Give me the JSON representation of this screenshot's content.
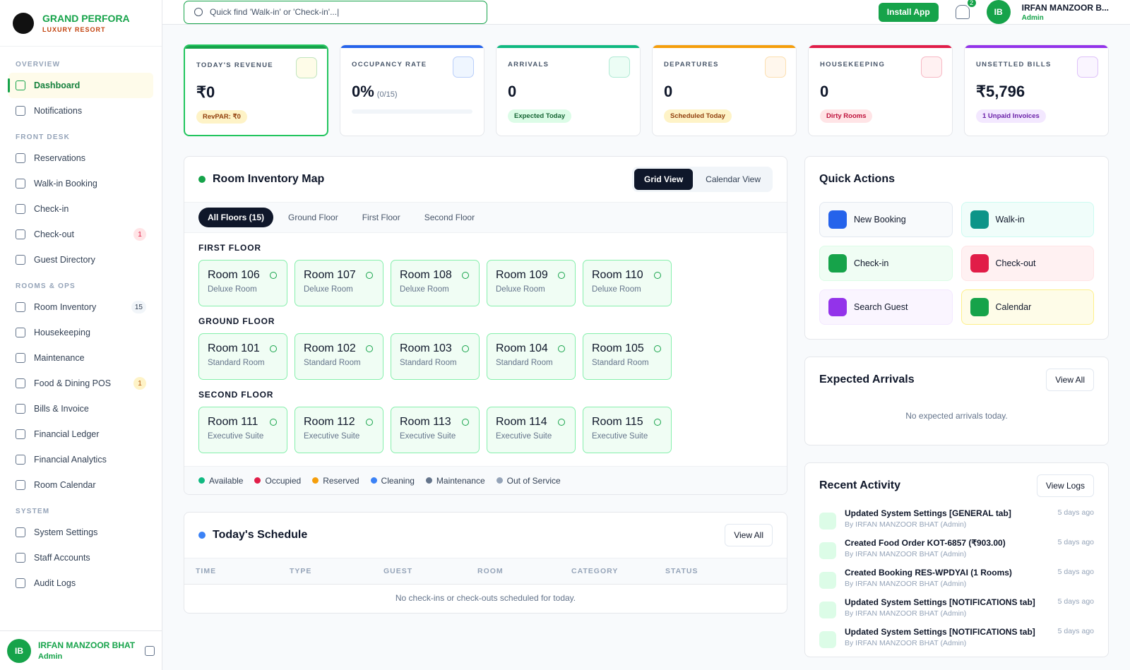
{
  "brand": {
    "name": "GRAND PERFORA",
    "tagline": "LUXURY RESORT"
  },
  "header": {
    "search": "Quick find 'Walk-in' or 'Check-in'...|",
    "install": "Install App",
    "notifications": 2,
    "initials": "IB",
    "user": "IRFAN MANZOOR B...",
    "role": "Admin"
  },
  "sidebar": {
    "sections": [
      {
        "title": "OVERVIEW",
        "items": [
          {
            "label": "Dashboard"
          },
          {
            "label": "Notifications"
          }
        ]
      },
      {
        "title": "FRONT DESK",
        "items": [
          {
            "label": "Reservations"
          },
          {
            "label": "Walk-in Booking"
          },
          {
            "label": "Check-in"
          },
          {
            "label": "Check-out",
            "badge": 1
          },
          {
            "label": "Guest Directory"
          }
        ]
      },
      {
        "title": "ROOMS & OPS",
        "items": [
          {
            "label": "Room Inventory",
            "badge": 15
          },
          {
            "label": "Housekeeping"
          },
          {
            "label": "Maintenance"
          },
          {
            "label": "Food & Dining POS",
            "badge": 1
          },
          {
            "label": "Bills & Invoice"
          },
          {
            "label": "Financial Ledger"
          },
          {
            "label": "Financial Analytics"
          },
          {
            "label": "Room Calendar"
          }
        ]
      },
      {
        "title": "SYSTEM",
        "items": [
          {
            "label": "System Settings"
          },
          {
            "label": "Staff Accounts"
          },
          {
            "label": "Audit Logs"
          }
        ]
      }
    ],
    "footer": {
      "initials": "IB",
      "name": "IRFAN MANZOOR BHAT",
      "role": "Admin"
    }
  },
  "stats": [
    {
      "label": "TODAY'S REVENUE",
      "value": "₹0",
      "badge": "RevPAR: ₹0"
    },
    {
      "label": "OCCUPANCY RATE",
      "value": "0%",
      "sub": "(0/15)"
    },
    {
      "label": "ARRIVALS",
      "value": "0",
      "badge": "Expected Today"
    },
    {
      "label": "DEPARTURES",
      "value": "0",
      "badge": "Scheduled Today"
    },
    {
      "label": "HOUSEKEEPING",
      "value": "0",
      "badge": "Dirty Rooms"
    },
    {
      "label": "UNSETTLED BILLS",
      "value": "₹5,796",
      "badge": "1 Unpaid Invoices"
    }
  ],
  "room_map": {
    "title": "Room Inventory Map",
    "views": [
      "Grid View",
      "Calendar View"
    ],
    "tabs": [
      "All Floors (15)",
      "Ground Floor",
      "First Floor",
      "Second Floor"
    ],
    "floors": [
      {
        "name": "FIRST FLOOR",
        "rooms": [
          {
            "name": "Room 106",
            "type": "Deluxe Room"
          },
          {
            "name": "Room 107",
            "type": "Deluxe Room"
          },
          {
            "name": "Room 108",
            "type": "Deluxe Room"
          },
          {
            "name": "Room 109",
            "type": "Deluxe Room"
          },
          {
            "name": "Room 110",
            "type": "Deluxe Room"
          }
        ]
      },
      {
        "name": "GROUND FLOOR",
        "rooms": [
          {
            "name": "Room 101",
            "type": "Standard Room"
          },
          {
            "name": "Room 102",
            "type": "Standard Room"
          },
          {
            "name": "Room 103",
            "type": "Standard Room"
          },
          {
            "name": "Room 104",
            "type": "Standard Room"
          },
          {
            "name": "Room 105",
            "type": "Standard Room"
          }
        ]
      },
      {
        "name": "SECOND FLOOR",
        "rooms": [
          {
            "name": "Room 111",
            "type": "Executive Suite"
          },
          {
            "name": "Room 112",
            "type": "Executive Suite"
          },
          {
            "name": "Room 113",
            "type": "Executive Suite"
          },
          {
            "name": "Room 114",
            "type": "Executive Suite"
          },
          {
            "name": "Room 115",
            "type": "Executive Suite"
          }
        ]
      }
    ],
    "legend": [
      "Available",
      "Occupied",
      "Reserved",
      "Cleaning",
      "Maintenance",
      "Out of Service"
    ]
  },
  "schedule": {
    "title": "Today's Schedule",
    "button": "View All",
    "columns": [
      "TIME",
      "TYPE",
      "GUEST",
      "ROOM",
      "CATEGORY",
      "STATUS"
    ],
    "empty": "No check-ins or check-outs scheduled for today."
  },
  "quick_actions": {
    "title": "Quick Actions",
    "actions": [
      "New Booking",
      "Walk-in",
      "Check-in",
      "Check-out",
      "Search Guest",
      "Calendar"
    ]
  },
  "arrivals": {
    "title": "Expected Arrivals",
    "button": "View All",
    "empty": "No expected arrivals today."
  },
  "activity": {
    "title": "Recent Activity",
    "button": "View Logs",
    "items": [
      {
        "title": "Updated System Settings [GENERAL tab]",
        "by": "By IRFAN MANZOOR BHAT (Admin)",
        "time": "5 days ago"
      },
      {
        "title": "Created Food Order KOT-6857 (₹903.00)",
        "by": "By IRFAN MANZOOR BHAT (Admin)",
        "time": "5 days ago"
      },
      {
        "title": "Created Booking RES-WPDYAI (1 Rooms)",
        "by": "By IRFAN MANZOOR BHAT (Admin)",
        "time": "5 days ago"
      },
      {
        "title": "Updated System Settings [NOTIFICATIONS tab]",
        "by": "By IRFAN MANZOOR BHAT (Admin)",
        "time": "5 days ago"
      },
      {
        "title": "Updated System Settings [NOTIFICATIONS tab]",
        "by": "By IRFAN MANZOOR BHAT (Admin)",
        "time": "5 days ago"
      }
    ]
  }
}
